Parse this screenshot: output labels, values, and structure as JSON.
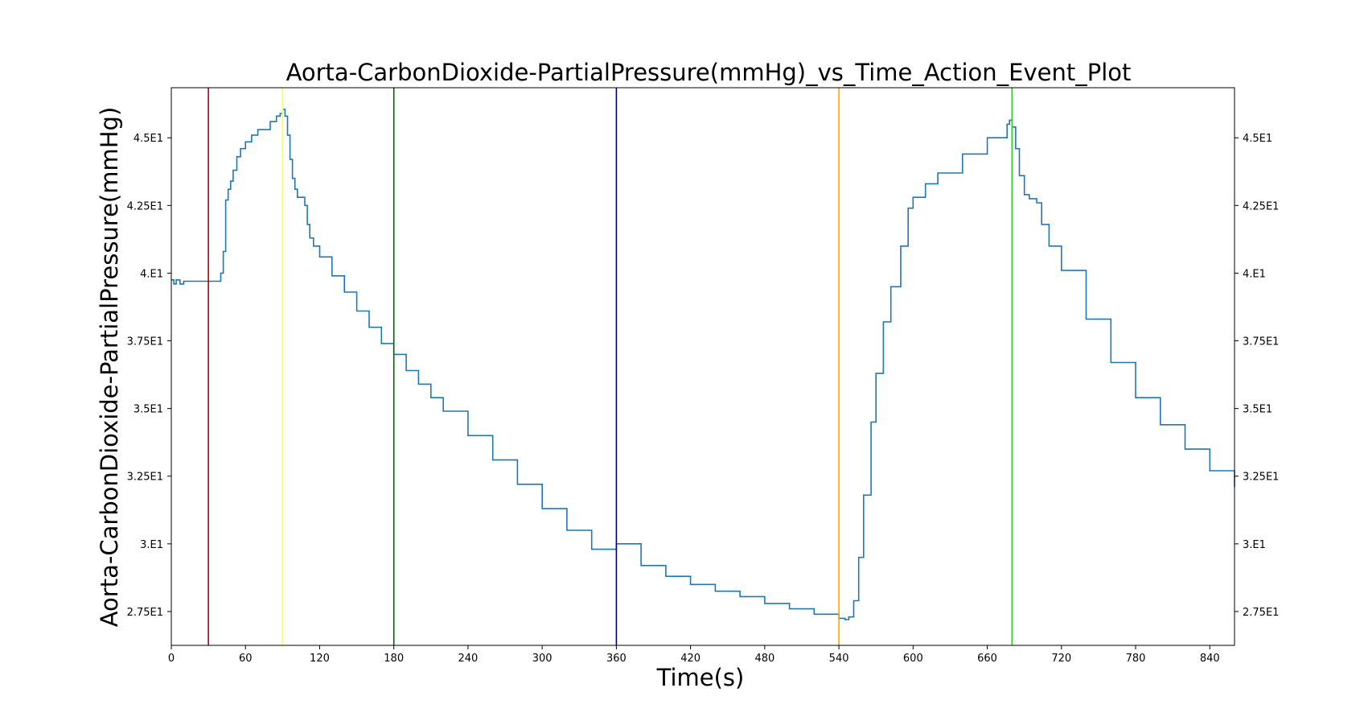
{
  "chart_data": {
    "type": "line",
    "title": "Aorta-CarbonDioxide-PartialPressure(mmHg)_vs_Time_Action_Event_Plot",
    "xlabel": "Time(s)",
    "ylabel": "Aorta-CarbonDioxide-PartialPressure(mmHg)",
    "xlim": [
      0,
      860
    ],
    "ylim": [
      26.25,
      46.85
    ],
    "x_ticks": [
      0,
      60,
      120,
      180,
      240,
      300,
      360,
      420,
      480,
      540,
      600,
      660,
      720,
      780,
      840
    ],
    "x_tick_labels": [
      "0",
      "60",
      "120",
      "180",
      "240",
      "300",
      "360",
      "420",
      "480",
      "540",
      "600",
      "660",
      "720",
      "780",
      "840"
    ],
    "y_ticks": [
      27.5,
      30,
      32.5,
      35,
      37.5,
      40,
      42.5,
      45
    ],
    "y_tick_labels": [
      "2.75E1",
      "3.E1",
      "3.25E1",
      "3.5E1",
      "3.75E1",
      "4.E1",
      "4.25E1",
      "4.5E1"
    ],
    "grid": false,
    "series": [
      {
        "color": "#1f77b4",
        "x": [
          0,
          2,
          4,
          7,
          10,
          20,
          30,
          37,
          40,
          42,
          44,
          46,
          48,
          50,
          53,
          56,
          60,
          65,
          70,
          80,
          85,
          88,
          90,
          92,
          94,
          96,
          98,
          100,
          102,
          104,
          108,
          110,
          112,
          115,
          120,
          130,
          140,
          150,
          160,
          170,
          180,
          190,
          200,
          210,
          220,
          240,
          260,
          280,
          300,
          320,
          340,
          360,
          380,
          400,
          420,
          440,
          460,
          480,
          500,
          520,
          540,
          545,
          548,
          552,
          556,
          560,
          566,
          570,
          576,
          582,
          590,
          596,
          600,
          610,
          620,
          640,
          660,
          676,
          678,
          680,
          683,
          686,
          690,
          694,
          700,
          704,
          710,
          720,
          740,
          760,
          780,
          800,
          820,
          840,
          860
        ],
        "y": [
          39.75,
          39.6,
          39.75,
          39.6,
          39.7,
          39.7,
          39.7,
          39.7,
          40.0,
          40.8,
          42.7,
          43.1,
          43.4,
          43.8,
          44.3,
          44.6,
          44.85,
          45.1,
          45.3,
          45.6,
          45.8,
          45.9,
          46.05,
          45.8,
          45.1,
          44.2,
          43.5,
          43.1,
          42.8,
          42.8,
          42.5,
          41.8,
          41.3,
          41.0,
          40.6,
          39.9,
          39.3,
          38.6,
          38.0,
          37.4,
          37.0,
          36.4,
          35.9,
          35.4,
          34.9,
          34.0,
          33.1,
          32.2,
          31.3,
          30.5,
          29.8,
          30.0,
          29.2,
          28.8,
          28.5,
          28.25,
          28.05,
          27.8,
          27.6,
          27.4,
          27.25,
          27.2,
          27.3,
          27.9,
          29.5,
          31.8,
          34.5,
          36.3,
          38.2,
          39.5,
          41.0,
          42.4,
          42.8,
          43.3,
          43.7,
          44.4,
          45.0,
          45.5,
          45.65,
          45.4,
          44.6,
          43.6,
          42.9,
          42.75,
          42.6,
          41.8,
          41.0,
          40.1,
          38.3,
          36.7,
          35.4,
          34.4,
          33.5,
          32.7,
          32.1
        ]
      }
    ],
    "event_lines": [
      {
        "x": 30,
        "color": "#b00000"
      },
      {
        "x": 90,
        "color": "#ffff33"
      },
      {
        "x": 180,
        "color": "#006400"
      },
      {
        "x": 360,
        "color": "#000080"
      },
      {
        "x": 540,
        "color": "#ffa500"
      },
      {
        "x": 680,
        "color": "#32cd32"
      }
    ]
  }
}
